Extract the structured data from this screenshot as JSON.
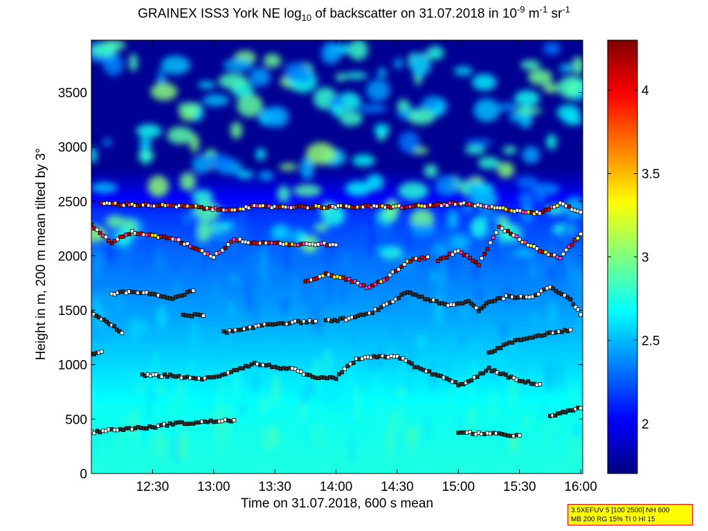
{
  "title": {
    "prefix": "GRAINEX ISS3 York NE log",
    "sub": "10",
    "middle": " of backscatter on 31.07.2018 in 10",
    "sup1": "-9",
    "unit1": " m",
    "sup2": "-1",
    "unit2": " sr",
    "sup3": "-1"
  },
  "info_box": {
    "line1": "3.5XEFUV 5 [100 2500] NH 600",
    "line2": "MB 200 RG 15% TI 0 HI 15"
  },
  "chart_data": {
    "type": "heatmap",
    "xlabel": "Time on 31.07.2018, 600 s mean",
    "ylabel": "Height in m, 200 m mean tilted by 3°",
    "x_ticks": [
      "12:30",
      "13:00",
      "13:30",
      "14:00",
      "14:30",
      "15:00",
      "15:30",
      "16:00"
    ],
    "x_range": [
      "12:00",
      "16:01"
    ],
    "y_ticks": [
      0,
      500,
      1000,
      1500,
      2000,
      2500,
      3000,
      3500
    ],
    "ylim": [
      0,
      3980
    ],
    "colorbar": {
      "ticks": [
        2,
        2.5,
        3,
        3.5,
        4
      ],
      "range": [
        1.7,
        4.3
      ],
      "colormap": "jet"
    },
    "background_profile": [
      {
        "height": 0,
        "value": 2.75
      },
      {
        "height": 600,
        "value": 2.7
      },
      {
        "height": 1100,
        "value": 2.55
      },
      {
        "height": 1600,
        "value": 2.4
      },
      {
        "height": 2000,
        "value": 2.3
      },
      {
        "height": 2400,
        "value": 2.15
      },
      {
        "height": 2800,
        "value": 1.75
      },
      {
        "height": 3980,
        "value": 1.75
      }
    ],
    "layer_series": [
      {
        "points": [
          [
            "12:00",
            380
          ],
          [
            "12:10",
            400
          ],
          [
            "12:20",
            415
          ],
          [
            "12:30",
            425
          ],
          [
            "12:40",
            460
          ],
          [
            "12:50",
            465
          ],
          [
            "13:00",
            480
          ],
          [
            "13:10",
            490
          ]
        ]
      },
      {
        "points": [
          [
            "15:00",
            370
          ],
          [
            "15:10",
            370
          ],
          [
            "15:20",
            360
          ],
          [
            "15:30",
            350
          ]
        ]
      },
      {
        "points": [
          [
            "15:45",
            520
          ],
          [
            "15:50",
            550
          ],
          [
            "15:55",
            580
          ],
          [
            "16:00",
            600
          ]
        ]
      },
      {
        "points": [
          [
            "12:00",
            1100
          ],
          [
            "12:05",
            1120
          ]
        ]
      },
      {
        "points": [
          [
            "12:25",
            900
          ],
          [
            "12:40",
            900
          ],
          [
            "12:50",
            870
          ],
          [
            "13:00",
            880
          ],
          [
            "13:10",
            950
          ],
          [
            "13:20",
            1010
          ],
          [
            "13:30",
            980
          ],
          [
            "13:40",
            950
          ],
          [
            "13:50",
            870
          ],
          [
            "14:00",
            880
          ],
          [
            "14:10",
            1050
          ],
          [
            "14:20",
            1070
          ],
          [
            "14:30",
            1080
          ],
          [
            "14:40",
            970
          ],
          [
            "14:50",
            900
          ],
          [
            "15:00",
            820
          ],
          [
            "15:05",
            840
          ],
          [
            "15:15",
            960
          ],
          [
            "15:30",
            850
          ],
          [
            "15:40",
            820
          ]
        ]
      },
      {
        "points": [
          [
            "12:00",
            1480
          ],
          [
            "12:05",
            1420
          ],
          [
            "12:10",
            1360
          ],
          [
            "12:15",
            1290
          ]
        ]
      },
      {
        "points": [
          [
            "12:45",
            1460
          ],
          [
            "12:55",
            1450
          ]
        ]
      },
      {
        "points": [
          [
            "13:05",
            1300
          ],
          [
            "13:15",
            1320
          ],
          [
            "13:25",
            1370
          ],
          [
            "13:40",
            1390
          ],
          [
            "13:50",
            1400
          ]
        ]
      },
      {
        "points": [
          [
            "13:55",
            1400
          ],
          [
            "14:05",
            1420
          ],
          [
            "14:15",
            1460
          ],
          [
            "14:25",
            1550
          ],
          [
            "14:35",
            1670
          ],
          [
            "14:45",
            1600
          ],
          [
            "14:55",
            1540
          ],
          [
            "15:05",
            1580
          ],
          [
            "15:10",
            1500
          ],
          [
            "15:15",
            1580
          ],
          [
            "15:25",
            1630
          ],
          [
            "15:35",
            1610
          ],
          [
            "15:45",
            1720
          ],
          [
            "15:55",
            1600
          ],
          [
            "16:00",
            1460
          ]
        ]
      },
      {
        "points": [
          [
            "15:15",
            1110
          ],
          [
            "15:25",
            1200
          ],
          [
            "15:35",
            1250
          ],
          [
            "15:45",
            1290
          ],
          [
            "15:55",
            1320
          ]
        ]
      },
      {
        "points": [
          [
            "12:10",
            1650
          ],
          [
            "12:20",
            1670
          ],
          [
            "12:30",
            1650
          ],
          [
            "12:40",
            1600
          ],
          [
            "12:50",
            1680
          ]
        ]
      },
      {
        "points": [
          [
            "13:45",
            1760
          ],
          [
            "13:55",
            1830
          ],
          [
            "14:05",
            1790
          ],
          [
            "14:15",
            1710
          ],
          [
            "14:25",
            1800
          ],
          [
            "14:35",
            1950
          ],
          [
            "14:45",
            1990
          ]
        ]
      },
      {
        "points": [
          [
            "12:00",
            2280
          ],
          [
            "12:10",
            2120
          ],
          [
            "12:20",
            2220
          ],
          [
            "12:30",
            2180
          ],
          [
            "12:40",
            2160
          ],
          [
            "12:50",
            2080
          ],
          [
            "13:00",
            1990
          ],
          [
            "13:10",
            2150
          ],
          [
            "13:20",
            2120
          ],
          [
            "13:30",
            2120
          ],
          [
            "13:40",
            2100
          ],
          [
            "13:50",
            2110
          ],
          [
            "14:00",
            2100
          ]
        ]
      },
      {
        "points": [
          [
            "14:50",
            1950
          ],
          [
            "15:00",
            2050
          ],
          [
            "15:10",
            1920
          ],
          [
            "15:20",
            2270
          ],
          [
            "15:30",
            2150
          ],
          [
            "15:40",
            2050
          ],
          [
            "15:50",
            1980
          ],
          [
            "16:00",
            2200
          ]
        ]
      },
      {
        "points": [
          [
            "12:05",
            2480
          ],
          [
            "12:50",
            2450
          ],
          [
            "13:05",
            2420
          ],
          [
            "13:20",
            2450
          ],
          [
            "13:30",
            2450
          ],
          [
            "14:35",
            2450
          ],
          [
            "14:45",
            2460
          ],
          [
            "15:00",
            2480
          ],
          [
            "15:40",
            2390
          ],
          [
            "15:50",
            2480
          ],
          [
            "16:00",
            2400
          ]
        ]
      }
    ]
  }
}
